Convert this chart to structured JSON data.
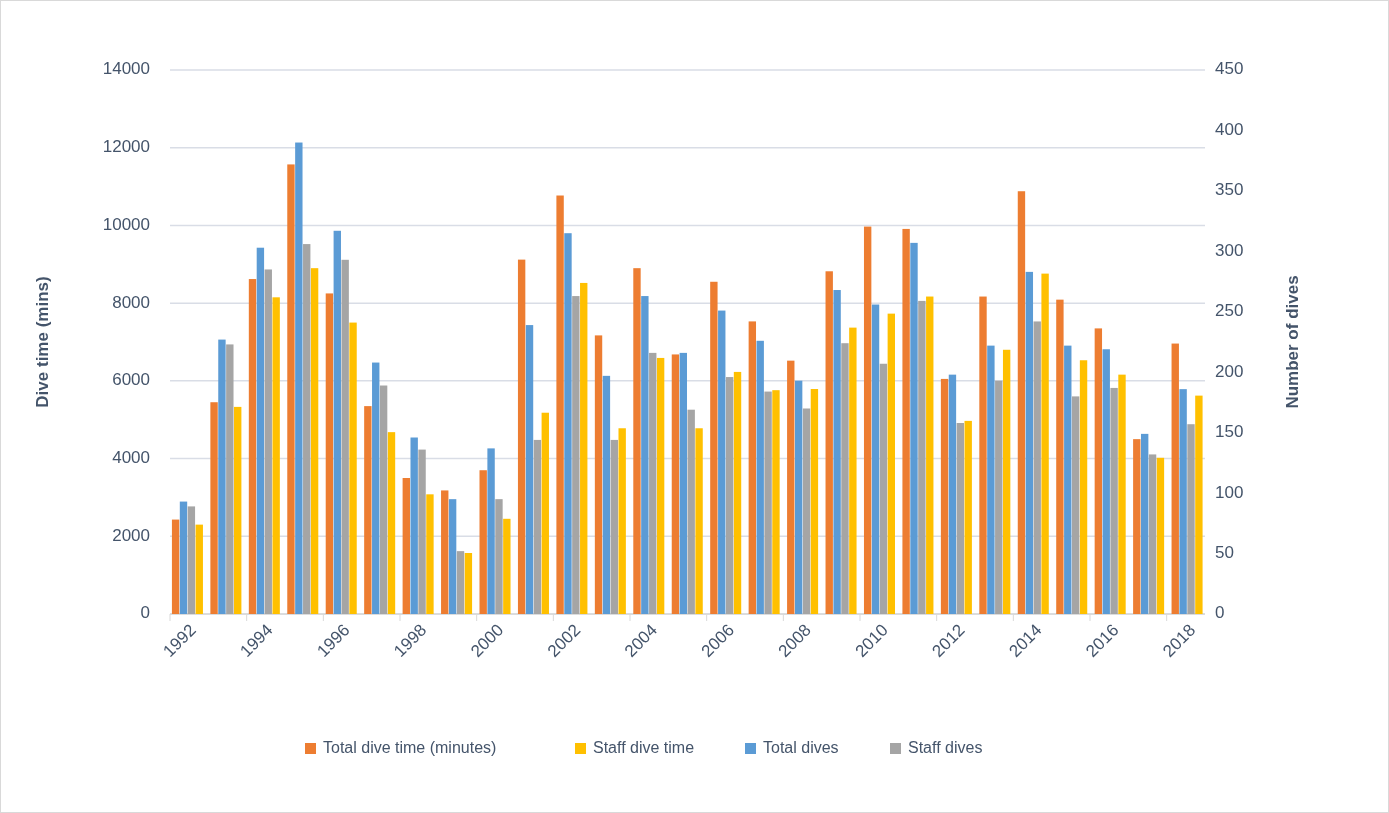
{
  "chart_data": {
    "type": "bar",
    "ylabel": "Dive time (mins)",
    "y2label": "Number of dives",
    "categories": [
      "1992",
      null,
      "1994",
      null,
      "1996",
      null,
      "1998",
      null,
      "2000",
      null,
      "2002",
      null,
      "2004",
      null,
      "2006",
      null,
      "2008",
      null,
      "2010",
      null,
      "2012",
      null,
      "2014",
      null,
      "2016",
      null,
      "2018"
    ],
    "series": [
      {
        "name": "Total dive time (minutes)",
        "color": "#ed7d31",
        "values": [
          2430,
          5450,
          8620,
          11570,
          8250,
          5350,
          3500,
          3180,
          3700,
          9120,
          10770,
          7170,
          8900,
          6680,
          8550,
          7530,
          6520,
          8820,
          9970,
          9910,
          6050,
          8170,
          10880,
          8090,
          7350,
          4500,
          6960
        ]
      },
      {
        "name": "Staff dive time",
        "color": "#ffc000",
        "values": [
          2300,
          5330,
          8150,
          8900,
          7500,
          4680,
          3080,
          1570,
          2450,
          5180,
          8520,
          4780,
          6590,
          4780,
          6230,
          5760,
          5790,
          7370,
          7730,
          8170,
          4970,
          6800,
          8760,
          6530,
          6160,
          4020,
          5620
        ]
      },
      {
        "name": "Total dives",
        "color": "#5b9bd5",
        "axis": "y2",
        "values": [
          93,
          227,
          303,
          390,
          317,
          208,
          146,
          95,
          137,
          239,
          315,
          197,
          263,
          216,
          251,
          226,
          193,
          268,
          256,
          307,
          198,
          222,
          283,
          222,
          219,
          149,
          186
        ]
      },
      {
        "name": "Staff dives",
        "color": "#a5a5a5",
        "axis": "y2",
        "values": [
          89,
          223,
          285,
          306,
          293,
          189,
          136,
          52,
          95,
          144,
          263,
          144,
          216,
          169,
          196,
          184,
          170,
          224,
          207,
          259,
          158,
          193,
          242,
          180,
          187,
          132,
          157
        ]
      }
    ],
    "ylim": [
      0,
      14000
    ],
    "yticks": [
      0,
      2000,
      4000,
      6000,
      8000,
      10000,
      12000,
      14000
    ],
    "y2lim": [
      0,
      450
    ],
    "y2ticks": [
      0,
      50,
      100,
      150,
      200,
      250,
      300,
      350,
      400,
      450
    ],
    "grid": "y",
    "legend": "bottom"
  }
}
